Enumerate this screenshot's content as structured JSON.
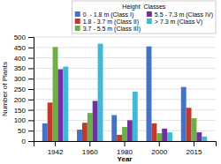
{
  "chart_data": {
    "type": "bar",
    "categories": [
      "1942",
      "1960",
      "1980",
      "2000",
      "2015"
    ],
    "series": [
      {
        "name": "0  - 1.8 m (Class I)",
        "color": "#4472C4",
        "values": [
          85,
          55,
          125,
          455,
          260
        ]
      },
      {
        "name": "1.8 - 3.7 m (Class II)",
        "color": "#C0392B",
        "values": [
          185,
          88,
          30,
          85,
          160
        ]
      },
      {
        "name": "3.7 - 5.5 m (Class III)",
        "color": "#70AD47",
        "values": [
          452,
          135,
          68,
          38,
          110
        ]
      },
      {
        "name": "5.5 - 7.3 m (Class IV)",
        "color": "#7030A0",
        "values": [
          345,
          193,
          100,
          60,
          42
        ]
      },
      {
        "name": "> 7.3 m (Class V)",
        "color": "#41B8D5",
        "values": [
          358,
          468,
          238,
          42,
          22
        ]
      }
    ],
    "xlabel": "Year",
    "ylabel": "Number of Plants",
    "ylim": [
      0,
      500
    ],
    "yticks": [
      0,
      50,
      100,
      150,
      200,
      250,
      300,
      350,
      400,
      450,
      500
    ],
    "grid": true,
    "legend": "upper right",
    "legend_title": "Height  Classes"
  }
}
